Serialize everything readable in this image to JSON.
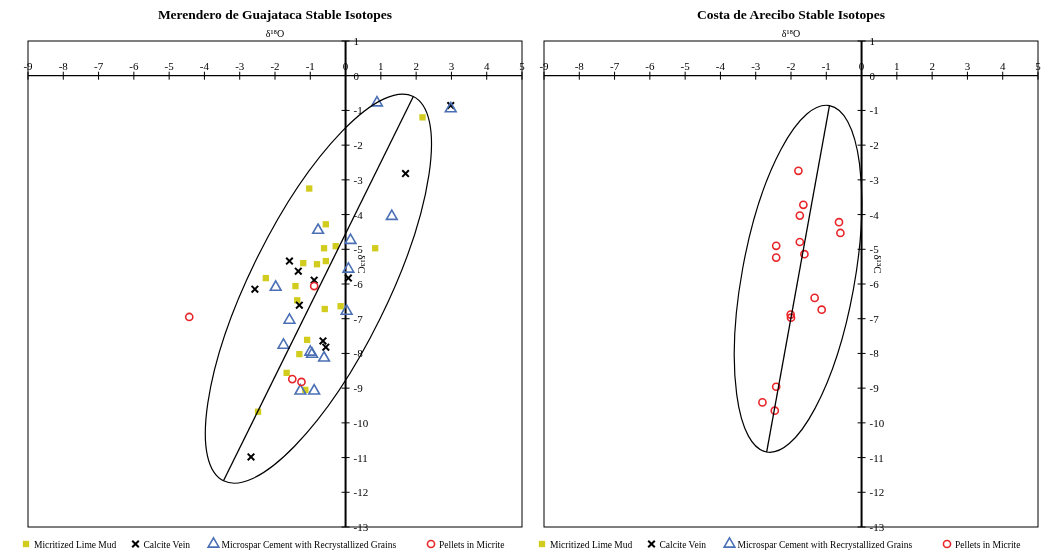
{
  "chart_data": [
    {
      "type": "scatter",
      "title": "Merendero de Guajataca Stable Isotopes",
      "xlabel": "δ¹⁸O",
      "ylabel": "δ¹³C",
      "xlim": [
        -9,
        5
      ],
      "ylim": [
        -13,
        1
      ],
      "xticks": [
        -9,
        -8,
        -7,
        -6,
        -5,
        -4,
        -3,
        -2,
        -1,
        0,
        1,
        2,
        3,
        4,
        5
      ],
      "yticks": [
        1,
        0,
        -1,
        -2,
        -3,
        -4,
        -5,
        -6,
        -7,
        -8,
        -9,
        -10,
        -11,
        -12,
        -13
      ],
      "legend": "bottom",
      "grid": false,
      "series": [
        {
          "name": "Micritized Lime Mud",
          "color": "#d2cc1e",
          "marker": "square",
          "x": [
            -1.03,
            -0.56,
            -0.61,
            -0.28,
            -1.2,
            -0.81,
            -0.56,
            -2.26,
            -1.42,
            -1.37,
            -0.59,
            -0.14,
            2.18,
            0.84,
            -1.09,
            -1.31,
            -1.67,
            -1.14,
            -2.48
          ],
          "values": [
            -3.25,
            -4.28,
            -4.97,
            -4.91,
            -5.4,
            -5.43,
            -5.34,
            -5.83,
            -6.06,
            -6.47,
            -6.72,
            -6.64,
            -1.2,
            -4.97,
            -7.61,
            -8.02,
            -8.56,
            -9.05,
            -9.68
          ]
        },
        {
          "name": "Calcite Vein",
          "color": "#000000",
          "marker": "cross",
          "x": [
            -1.59,
            -1.34,
            -2.57,
            -0.89,
            -1.31,
            1.7,
            2.98,
            0.08,
            -0.64,
            -0.56,
            -2.68
          ],
          "values": [
            -5.34,
            -5.63,
            -6.15,
            -5.89,
            -6.61,
            -2.82,
            -0.86,
            -5.83,
            -7.64,
            -7.82,
            -10.98
          ]
        },
        {
          "name": "Microspar Cement with Recrystallized Grains",
          "color": "#4a6fb5",
          "marker": "triangle",
          "x": [
            -0.78,
            -1.98,
            0.89,
            2.98,
            1.31,
            0.14,
            0.08,
            0.03,
            -1.59,
            -1.76,
            -1.0,
            -0.95,
            -0.61,
            -1.28,
            -0.89
          ],
          "values": [
            -4.45,
            -6.09,
            -0.78,
            -0.95,
            -4.05,
            -4.74,
            -5.57,
            -6.78,
            -7.04,
            -7.76,
            -7.96,
            -8.02,
            -8.13,
            -9.08,
            -9.08
          ]
        },
        {
          "name": "Pellets in Micrite",
          "color": "#e8262a",
          "marker": "circle",
          "x": [
            -4.43,
            -0.89,
            -1.51,
            -1.25
          ],
          "values": [
            -6.95,
            -6.06,
            -8.74,
            -8.82
          ]
        },
        {
          "type": "line",
          "color": "#000000",
          "x": [
            -3.46,
            1.92
          ],
          "values": [
            -11.67,
            -0.6
          ]
        }
      ]
    },
    {
      "type": "scatter",
      "title": "Costa de Arecibo Stable Isotopes",
      "xlabel": "δ¹⁸O",
      "ylabel": "δ¹³C",
      "xlim": [
        -9,
        5
      ],
      "ylim": [
        -13,
        1
      ],
      "xticks": [
        -9,
        -8,
        -7,
        -6,
        -5,
        -4,
        -3,
        -2,
        -1,
        0,
        1,
        2,
        3,
        4,
        5
      ],
      "yticks": [
        1,
        0,
        -1,
        -2,
        -3,
        -4,
        -5,
        -6,
        -7,
        -8,
        -9,
        -10,
        -11,
        -12,
        -13
      ],
      "legend": "bottom",
      "grid": false,
      "series": [
        {
          "name": "Micritized Lime Mud",
          "color": "#d2cc1e",
          "marker": "square"
        },
        {
          "name": "Calcite Vein",
          "color": "#000000",
          "marker": "cross"
        },
        {
          "name": "Microspar Cement with Recrystallized Grains",
          "color": "#4a6fb5",
          "marker": "triangle"
        },
        {
          "name": "Pellets in Micrite",
          "color": "#e8262a",
          "marker": "circle",
          "x": [
            -1.79,
            -1.65,
            -1.75,
            -0.64,
            -0.6,
            -2.42,
            -1.75,
            -2.42,
            -1.62,
            -1.33,
            -1.13,
            -2.01,
            -2.0,
            -2.42,
            -2.81,
            -2.46
          ],
          "values": [
            -2.74,
            -3.72,
            -4.03,
            -4.22,
            -4.53,
            -4.9,
            -4.79,
            -5.24,
            -5.14,
            -6.4,
            -6.74,
            -6.88,
            -6.97,
            -8.96,
            -9.41,
            -9.65
          ]
        },
        {
          "type": "line",
          "color": "#000000",
          "x": [
            -0.91,
            -2.69
          ],
          "values": [
            -0.86,
            -10.84
          ]
        }
      ]
    }
  ]
}
